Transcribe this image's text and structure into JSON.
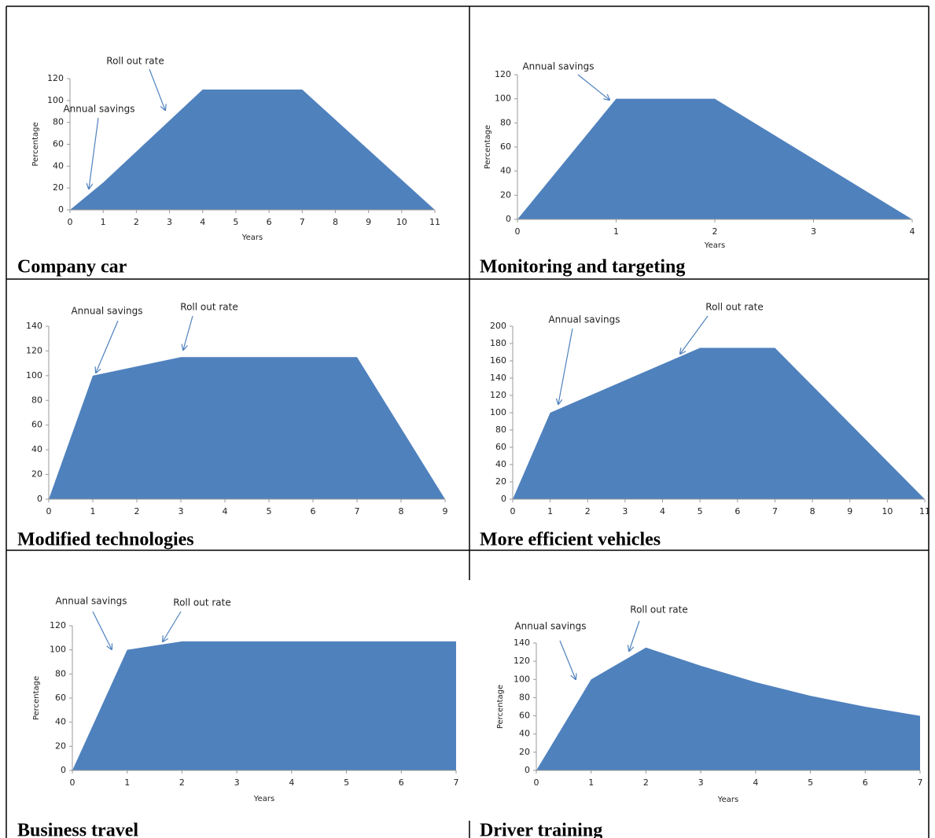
{
  "chart_data": [
    {
      "type": "area",
      "title": "Company car",
      "color": "#4f81bd",
      "x": [
        0,
        1,
        4,
        7,
        11
      ],
      "values": [
        0,
        25,
        110,
        110,
        0
      ],
      "xlim": [
        0,
        11
      ],
      "xticks": [
        0,
        1,
        2,
        3,
        4,
        5,
        6,
        7,
        8,
        9,
        10,
        11
      ],
      "ylim": [
        0,
        120
      ],
      "yticks": [
        0,
        20,
        40,
        60,
        80,
        100,
        120
      ],
      "xlabel": "Years",
      "ylabel": "Percentage",
      "annotations": [
        "Roll out rate",
        "Annual savings"
      ]
    },
    {
      "type": "area",
      "title": "Monitoring and targeting",
      "color": "#4f81bd",
      "x": [
        0,
        1,
        2,
        4
      ],
      "values": [
        0,
        100,
        100,
        0
      ],
      "xlim": [
        0,
        4
      ],
      "xticks": [
        0,
        1,
        2,
        3,
        4
      ],
      "ylim": [
        0,
        120
      ],
      "yticks": [
        0,
        20,
        40,
        60,
        80,
        100,
        120
      ],
      "xlabel": "Years",
      "ylabel": "Percentage",
      "annotations": [
        "Annual savings"
      ]
    },
    {
      "type": "area",
      "title": "Modified technologies",
      "color": "#4f81bd",
      "x": [
        0,
        1,
        3,
        7,
        9
      ],
      "values": [
        0,
        100,
        115,
        115,
        0
      ],
      "xlim": [
        0,
        9
      ],
      "xticks": [
        0,
        1,
        2,
        3,
        4,
        5,
        6,
        7,
        8,
        9
      ],
      "ylim": [
        0,
        140
      ],
      "yticks": [
        0,
        20,
        40,
        60,
        80,
        100,
        120,
        140
      ],
      "annotations": [
        "Annual savings",
        "Roll out rate"
      ]
    },
    {
      "type": "area",
      "title": "More efficient vehicles",
      "color": "#4f81bd",
      "x": [
        0,
        1,
        5,
        7,
        11
      ],
      "values": [
        0,
        100,
        175,
        175,
        0
      ],
      "xlim": [
        0,
        11
      ],
      "xticks": [
        0,
        1,
        2,
        3,
        4,
        5,
        6,
        7,
        8,
        9,
        10,
        11
      ],
      "ylim": [
        0,
        200
      ],
      "yticks": [
        0,
        20,
        40,
        60,
        80,
        100,
        120,
        140,
        160,
        180,
        200
      ],
      "annotations": [
        "Annual savings",
        "Roll out rate"
      ]
    },
    {
      "type": "area",
      "title": "Business travel",
      "color": "#4f81bd",
      "x": [
        0,
        1,
        2,
        7
      ],
      "values": [
        0,
        100,
        107,
        107
      ],
      "xlim": [
        0,
        7
      ],
      "xticks": [
        0,
        1,
        2,
        3,
        4,
        5,
        6,
        7
      ],
      "ylim": [
        0,
        120
      ],
      "yticks": [
        0,
        20,
        40,
        60,
        80,
        100,
        120
      ],
      "xlabel": "Years",
      "ylabel": "Percentage",
      "annotations": [
        "Annual savings",
        "Roll out rate"
      ]
    },
    {
      "type": "area",
      "title": "Driver training",
      "color": "#4f81bd",
      "x": [
        0,
        1,
        2,
        3,
        4,
        5,
        6,
        7
      ],
      "values": [
        0,
        100,
        135,
        115,
        97,
        82,
        70,
        60
      ],
      "xlim": [
        0,
        7
      ],
      "xticks": [
        0,
        1,
        2,
        3,
        4,
        5,
        6,
        7
      ],
      "ylim": [
        0,
        140
      ],
      "yticks": [
        0,
        20,
        40,
        60,
        80,
        100,
        120,
        140
      ],
      "xlabel": "Years",
      "ylabel": "Percentage",
      "annotations": [
        "Annual savings",
        "Roll out rate"
      ]
    }
  ]
}
